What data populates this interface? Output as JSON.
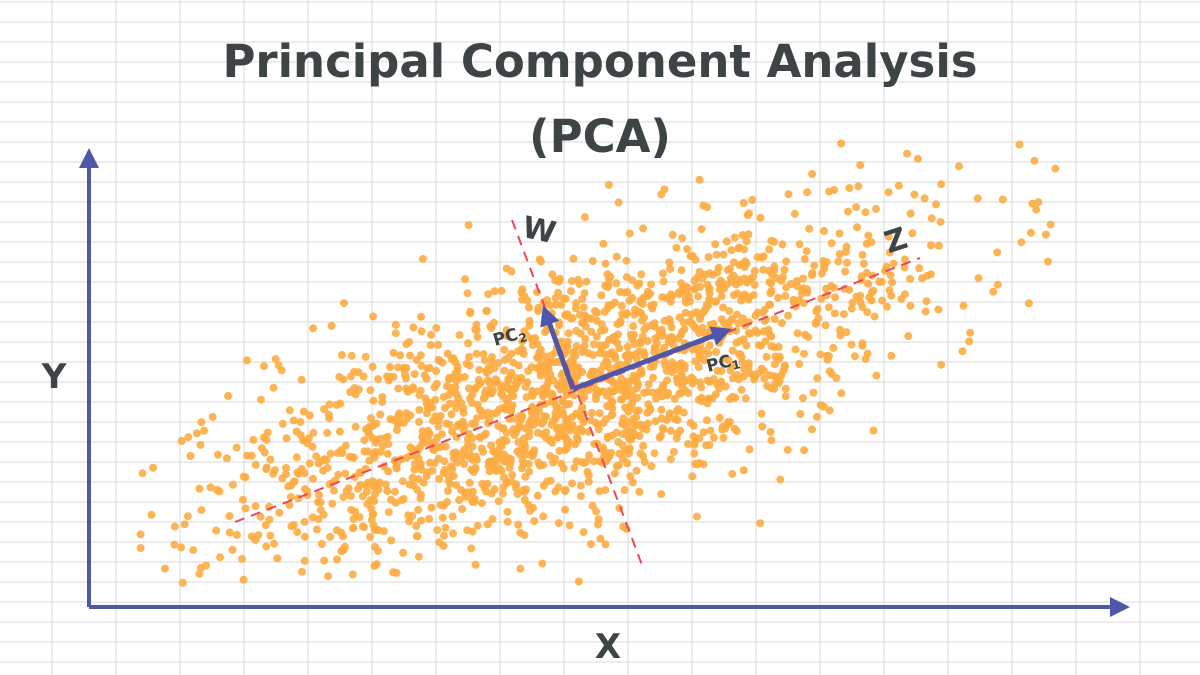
{
  "title": {
    "line1": "Principal Component Analysis",
    "line2": "(PCA)"
  },
  "axes": {
    "x_label": "X",
    "y_label": "Y"
  },
  "lines": {
    "principal_axis_label": "Z",
    "secondary_axis_label": "W"
  },
  "components": {
    "pc1": {
      "main": "PC",
      "sub": "1"
    },
    "pc2": {
      "main": "PC",
      "sub": "2"
    }
  },
  "colors": {
    "background": "#ffffff",
    "grid": "#d9d9d9",
    "title": "#3d4446",
    "axis": "#4f57a8",
    "points": "#fcac43",
    "dashed_line": "#e8485a",
    "pc_vector": "#4f57a8",
    "label_text": "#3d4446"
  },
  "scatter": {
    "point_count": 2000,
    "distribution": "elongated bivariate cloud along the Z direction"
  }
}
